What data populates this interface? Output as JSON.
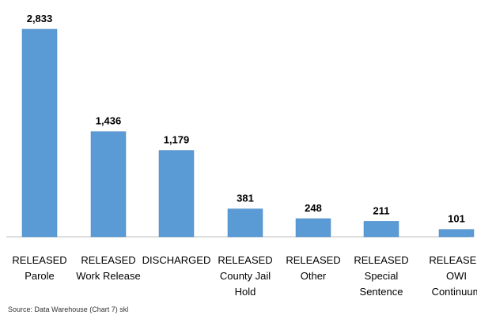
{
  "chart_data": {
    "type": "bar",
    "categories": [
      [
        "RELEASED",
        "Parole"
      ],
      [
        "RELEASED",
        "Work Release"
      ],
      [
        "DISCHARGED"
      ],
      [
        "RELEASED",
        "County Jail",
        "Hold"
      ],
      [
        "RELEASED",
        "Other"
      ],
      [
        "RELEASED",
        "Special",
        "Sentence"
      ],
      [
        "RELEASED",
        "OWI",
        "Continuum"
      ]
    ],
    "values": [
      2833,
      1436,
      1179,
      381,
      248,
      211,
      101
    ],
    "value_labels": [
      "2,833",
      "1,436",
      "1,179",
      "381",
      "248",
      "211",
      "101"
    ],
    "ylim": [
      0,
      2833
    ],
    "grid": false,
    "legend": "none",
    "colors": {
      "bar": "#5b9bd5",
      "bar_edge": "#4a86c0",
      "axis": "#bfbfbf",
      "text": "#000000"
    }
  },
  "source": "Source: Data Warehouse (Chart 7) skl"
}
